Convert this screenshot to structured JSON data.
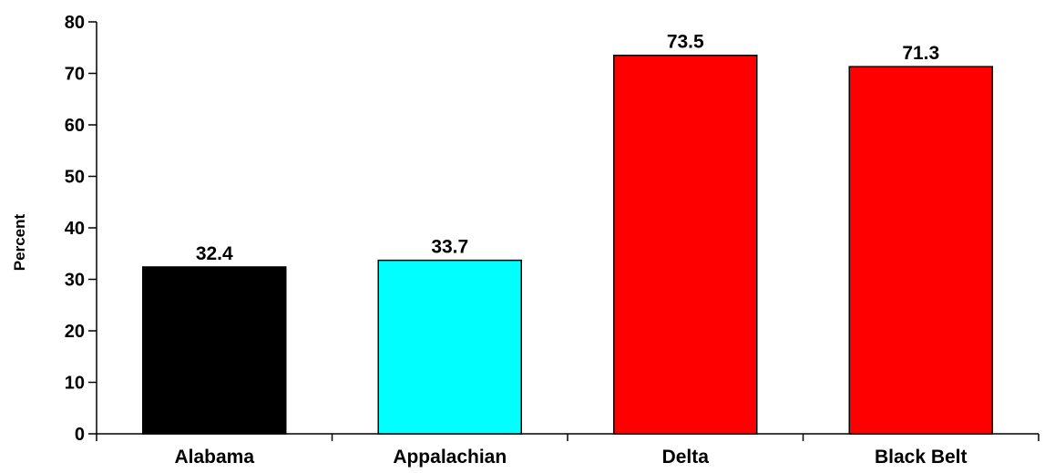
{
  "chart_data": {
    "type": "bar",
    "title": "",
    "xlabel": "",
    "ylabel": "Percent",
    "ylim": [
      0,
      80
    ],
    "yticks": [
      0,
      10,
      20,
      30,
      40,
      50,
      60,
      70,
      80
    ],
    "categories": [
      "Alabama",
      "Appalachian",
      "Delta",
      "Black Belt"
    ],
    "values": [
      32.4,
      33.7,
      73.5,
      71.3
    ],
    "value_labels": [
      "32.4",
      "33.7",
      "73.5",
      "71.3"
    ],
    "colors": [
      "#000000",
      "#00ffff",
      "#ff0000",
      "#ff0000"
    ],
    "grid": false,
    "legend": "none"
  }
}
